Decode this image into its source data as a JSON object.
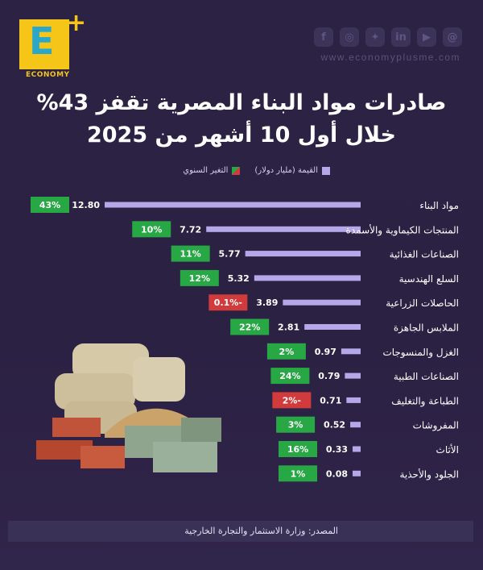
{
  "header": {
    "logo_text": "ECONOMY",
    "logo_letter": "E",
    "website": "www.economyplusme.com",
    "social_icons": [
      "facebook-icon",
      "instagram-icon",
      "twitter-icon",
      "linkedin-icon",
      "youtube-icon",
      "threads-icon"
    ]
  },
  "title_line1": "صادرات مواد البناء المصرية تقفز 43%",
  "title_line2": "خلال أول 10 أشهر من 2025",
  "legend": {
    "value_label": "القيمة (مليار دولار)",
    "change_label": "التغير السنوي"
  },
  "source": "المصدر: وزارة الاستثمار والتجارة الخارجية",
  "colors": {
    "bar": "#b4a8e8",
    "positive": "#28a745",
    "negative": "#d23b3b",
    "background": "#2c2244"
  },
  "chart_data": {
    "type": "bar",
    "orientation": "horizontal",
    "categories": [
      "مواد البناء",
      "المنتجات الكيماوية والأسمدة",
      "الصناعات الغذائية",
      "السلع الهندسية",
      "الحاصلات الزراعية",
      "الملابس الجاهزة",
      "الغزل والمنسوجات",
      "الصناعات الطبية",
      "الطباعة والتغليف",
      "المفروشات",
      "الأثاث",
      "الجلود والأحذية"
    ],
    "series": [
      {
        "name": "القيمة (مليار دولار)",
        "values": [
          12.8,
          7.72,
          5.77,
          5.32,
          3.89,
          2.81,
          0.97,
          0.79,
          0.71,
          0.52,
          0.33,
          0.08
        ]
      },
      {
        "name": "التغير السنوي",
        "values": [
          "43%",
          "10%",
          "11%",
          "12%",
          "-0.1%",
          "22%",
          "2%",
          "24%",
          "-2%",
          "3%",
          "16%",
          "1%"
        ]
      }
    ],
    "value_labels": [
      "12.80",
      "7.72",
      "5.77",
      "5.32",
      "3.89",
      "2.81",
      "0.97",
      "0.79",
      "0.71",
      "0.52",
      "0.33",
      "0.08"
    ],
    "change_labels": [
      "43%",
      "10%",
      "11%",
      "12%",
      "-0.1%",
      "22%",
      "2%",
      "24%",
      "-2%",
      "3%",
      "16%",
      "1%"
    ],
    "change_sign": [
      "+",
      "+",
      "+",
      "+",
      "-",
      "+",
      "+",
      "+",
      "-",
      "+",
      "+",
      "+"
    ]
  }
}
